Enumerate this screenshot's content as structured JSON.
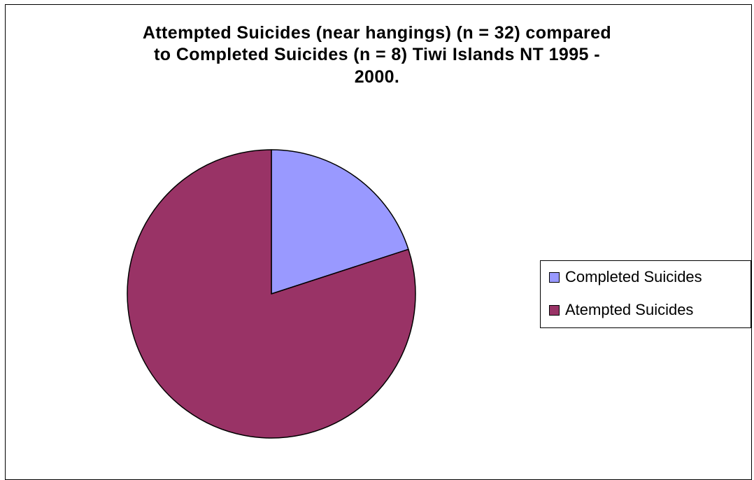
{
  "chart_data": {
    "type": "pie",
    "title_lines": [
      "Attempted Suicides (near hangings) (n = 32) compared",
      "to Completed Suicides (n = 8) Tiwi Islands NT 1995 -",
      "2000."
    ],
    "categories": [
      "Completed Suicides",
      "Atempted Suicides"
    ],
    "values": [
      8,
      32
    ],
    "colors": [
      "#9999ff",
      "#993366"
    ],
    "start_angle_deg": 0,
    "direction": "clockwise",
    "legend_position": "right"
  }
}
